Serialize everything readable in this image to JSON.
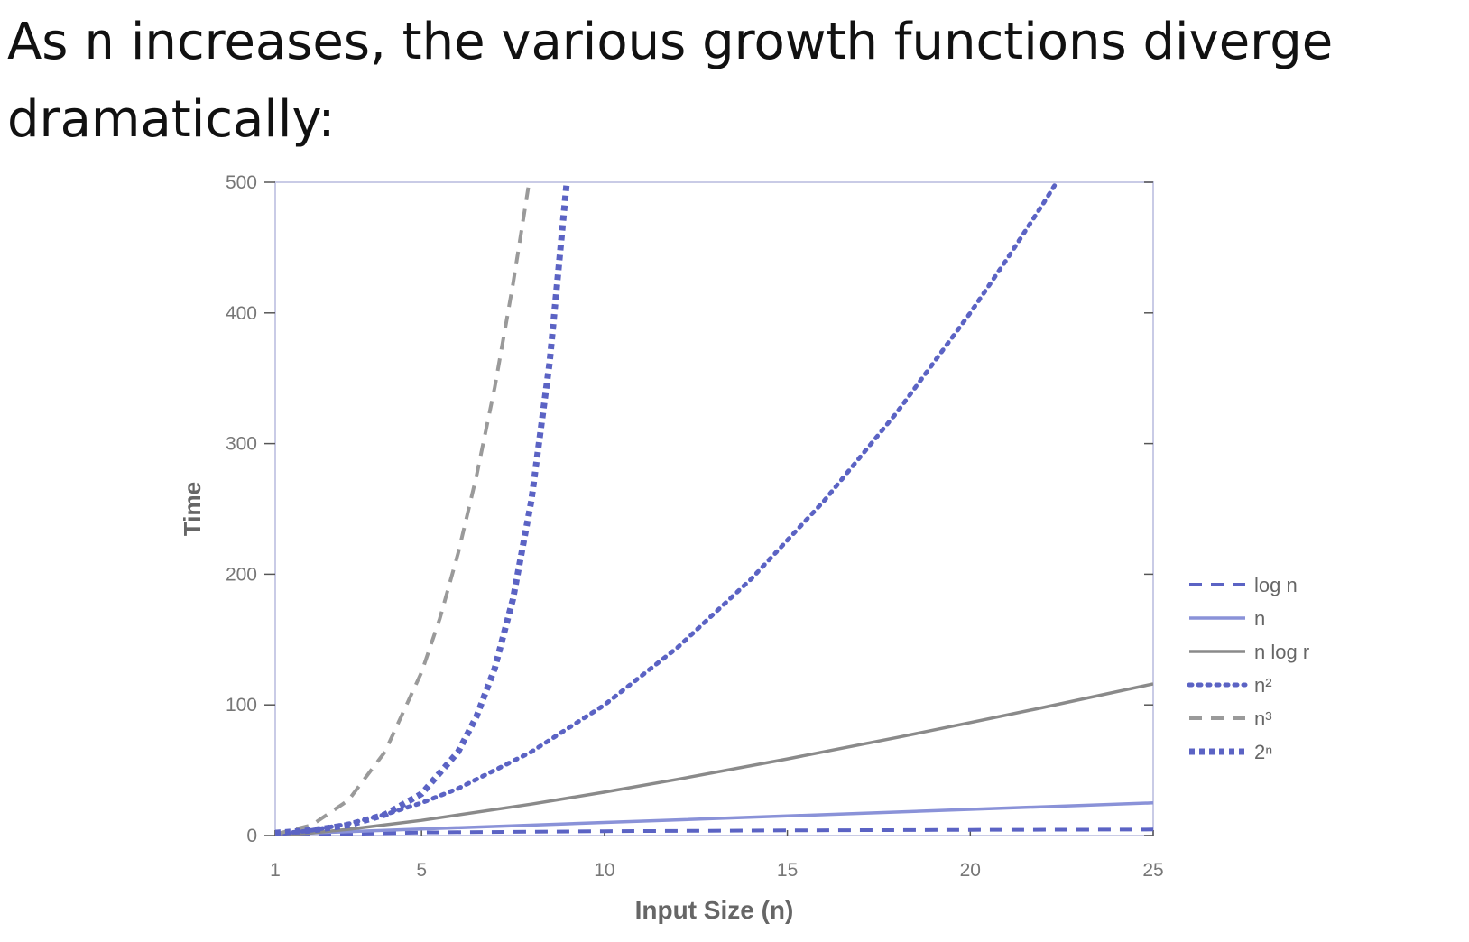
{
  "heading": {
    "before": "As ",
    "code": "n",
    "after1": " increases, the various growth functions diverge",
    "after2": "dramatically:"
  },
  "chart_data": {
    "type": "line",
    "xlabel": "Input Size (n)",
    "ylabel": "Time",
    "xlim": [
      1,
      25
    ],
    "ylim": [
      0,
      500
    ],
    "xticks": [
      1,
      5,
      10,
      15,
      20,
      25
    ],
    "yticks": [
      0,
      100,
      200,
      300,
      400,
      500
    ],
    "grid": false,
    "legend_position": "right",
    "series": [
      {
        "name": "log n",
        "style": "dashed",
        "color": "#5b63c4",
        "x": [
          1,
          5,
          10,
          15,
          20,
          25
        ],
        "values": [
          0,
          2.32,
          3.32,
          3.91,
          4.32,
          4.64
        ]
      },
      {
        "name": "n",
        "style": "solid",
        "color": "#8a92d8",
        "x": [
          1,
          5,
          10,
          15,
          20,
          25
        ],
        "values": [
          1,
          5,
          10,
          15,
          20,
          25
        ]
      },
      {
        "name": "n log r",
        "style": "solid",
        "color": "#8a8a8a",
        "x": [
          1,
          2,
          3,
          5,
          8,
          10,
          12,
          15,
          18,
          20,
          22,
          25
        ],
        "values": [
          0,
          2,
          4.75,
          11.61,
          24,
          33.22,
          43.02,
          58.6,
          75.06,
          86.44,
          98.1,
          116.1
        ]
      },
      {
        "name": "n²",
        "style": "dotted",
        "color": "#5b63c4",
        "x": [
          1,
          2,
          3,
          4,
          5,
          6,
          8,
          10,
          12,
          14,
          16,
          18,
          20,
          21,
          22,
          22.36
        ],
        "values": [
          1,
          4,
          9,
          16,
          25,
          36,
          64,
          100,
          144,
          196,
          256,
          324,
          400,
          441,
          484,
          500
        ]
      },
      {
        "name": "n³",
        "style": "dashed",
        "color": "#9a9a9a",
        "x": [
          1,
          2,
          3,
          4,
          5,
          5.5,
          6,
          6.5,
          7,
          7.5,
          7.94
        ],
        "values": [
          1,
          8,
          27,
          64,
          125,
          166,
          216,
          275,
          343,
          422,
          500
        ]
      },
      {
        "name": "2ⁿ",
        "style": "dotted-square",
        "color": "#5b63c4",
        "x": [
          1,
          2,
          3,
          4,
          5,
          6,
          6.5,
          7,
          7.5,
          8,
          8.5,
          8.97
        ],
        "values": [
          2,
          4,
          8,
          16,
          32,
          64,
          91,
          128,
          181,
          256,
          362,
          500
        ]
      }
    ]
  }
}
